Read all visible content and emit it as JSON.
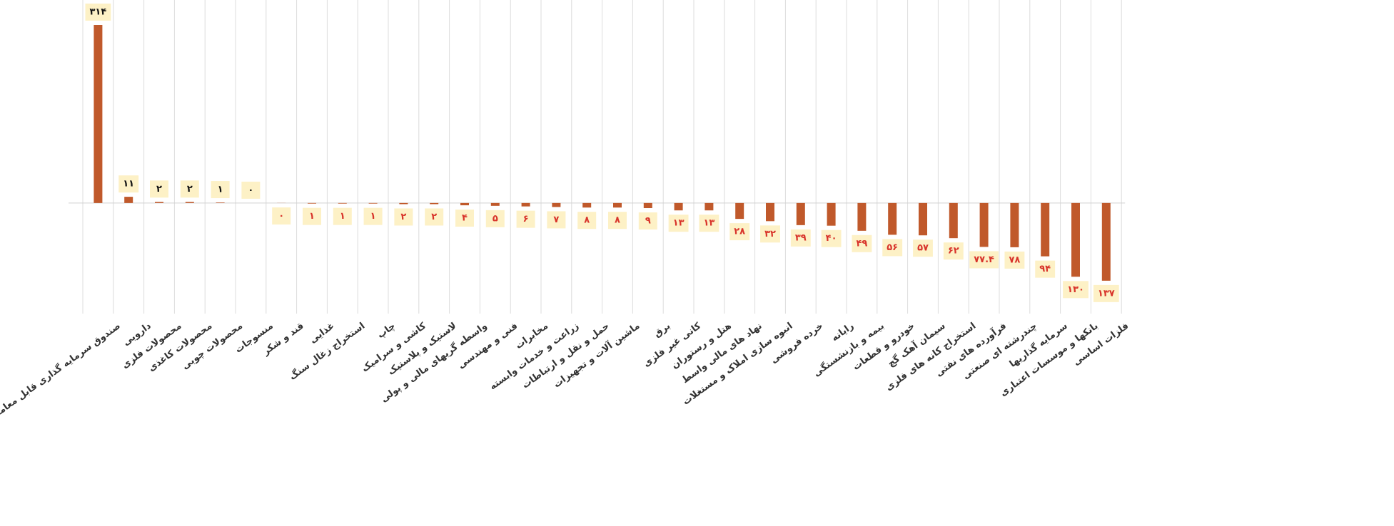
{
  "chart_data": {
    "type": "bar",
    "categories": [
      "صندوق سرمایه گذاری قابل معامله",
      "دارویی",
      "محصولات فلزی",
      "محصولات کاغذی",
      "محصولات چوبی",
      "منسوجات",
      "قند و شکر",
      "غذایی",
      "استخراج زغال سنگ",
      "چاپ",
      "کاشی و سرامیک",
      "لاستیک و پلاستیک",
      "واسطه گریهای مالی و پولی",
      "فنی و مهندسی",
      "مخابرات",
      "زراعت و خدمات وابسته",
      "حمل و نقل و ارتباطات",
      "ماشین آلات و تجهیزات",
      "برق",
      "کانی غیر فلزی",
      "هتل و رستوران",
      "نهاد های مالی واسط",
      "انبوه سازی املاک و مستغلات",
      "خرده فروشی",
      "رایانه",
      "بیمه و بازنشستگی",
      "خودرو و قطعات",
      "سیمان آهک گچ",
      "استخراج کانه های فلزی",
      "فرآورده های نفتی",
      "چندرشته ای صنعتی",
      "سرمایه گذاریها",
      "بانکها و موسسات اعتباری",
      "فلزات اساسی"
    ],
    "values": [
      314,
      11,
      2,
      2,
      1,
      0,
      -0.2,
      -1,
      -1,
      -1,
      -2,
      -2,
      -4,
      -5,
      -6,
      -7,
      -8,
      -8,
      -9,
      -13,
      -13,
      -28,
      -32,
      -39,
      -40,
      -49,
      -56,
      -57,
      -62,
      -77.4,
      -78,
      -94,
      -130,
      -137
    ],
    "value_labels": [
      "۳۱۴",
      "۱۱",
      "۲",
      "۲",
      "۱",
      "۰",
      "۰",
      "۱",
      "۱",
      "۱",
      "۲",
      "۲",
      "۴",
      "۵",
      "۶",
      "۷",
      "۸",
      "۸",
      "۹",
      "۱۳",
      "۱۳",
      "۲۸",
      "۳۲",
      "۳۹",
      "۴۰",
      "۴۹",
      "۵۶",
      "۵۷",
      "۶۲",
      "۷۷.۴",
      "۷۸",
      "۹۴",
      "۱۳۰",
      "۱۳۷"
    ],
    "color": "#c0592b",
    "ylim": [
      -195,
      358
    ],
    "grid": true
  }
}
